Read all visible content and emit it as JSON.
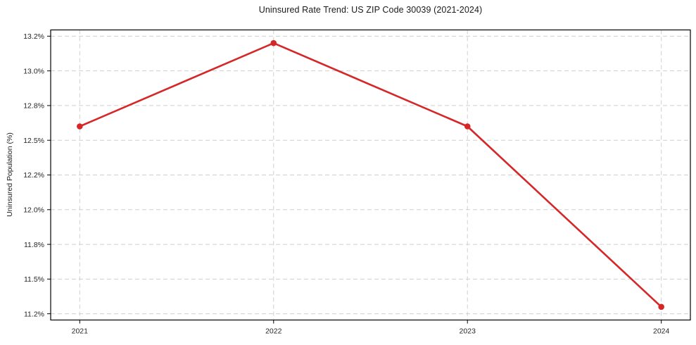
{
  "chart_data": {
    "type": "line",
    "title": "Uninsured Rate Trend: US ZIP Code 30039 (2021-2024)",
    "xlabel": "",
    "ylabel": "Uninsured Population (%)",
    "x": [
      2021,
      2022,
      2023,
      2024
    ],
    "x_tick_labels": [
      "2021",
      "2022",
      "2023",
      "2024"
    ],
    "series": [
      {
        "name": "Uninsured rate",
        "values": [
          12.6,
          13.2,
          12.6,
          11.3
        ]
      }
    ],
    "y_ticks": [
      {
        "value": 13.25,
        "label": "13.2%"
      },
      {
        "value": 13.0,
        "label": "13.0%"
      },
      {
        "value": 12.75,
        "label": "12.8%"
      },
      {
        "value": 12.5,
        "label": "12.5%"
      },
      {
        "value": 12.25,
        "label": "12.2%"
      },
      {
        "value": 12.0,
        "label": "12.0%"
      },
      {
        "value": 11.75,
        "label": "11.8%"
      },
      {
        "value": 11.5,
        "label": "11.5%"
      },
      {
        "value": 11.25,
        "label": "11.2%"
      }
    ],
    "xlim": [
      2020.85,
      2024.15
    ],
    "ylim": [
      11.205,
      13.295
    ],
    "grid": true,
    "grid_style": "dashed",
    "legend": "none",
    "marker": "circle",
    "colors": {
      "line": "#d62728",
      "marker": "#d62728",
      "grid": "#cfcfcf",
      "spine": "#000000",
      "text": "#262626"
    }
  }
}
